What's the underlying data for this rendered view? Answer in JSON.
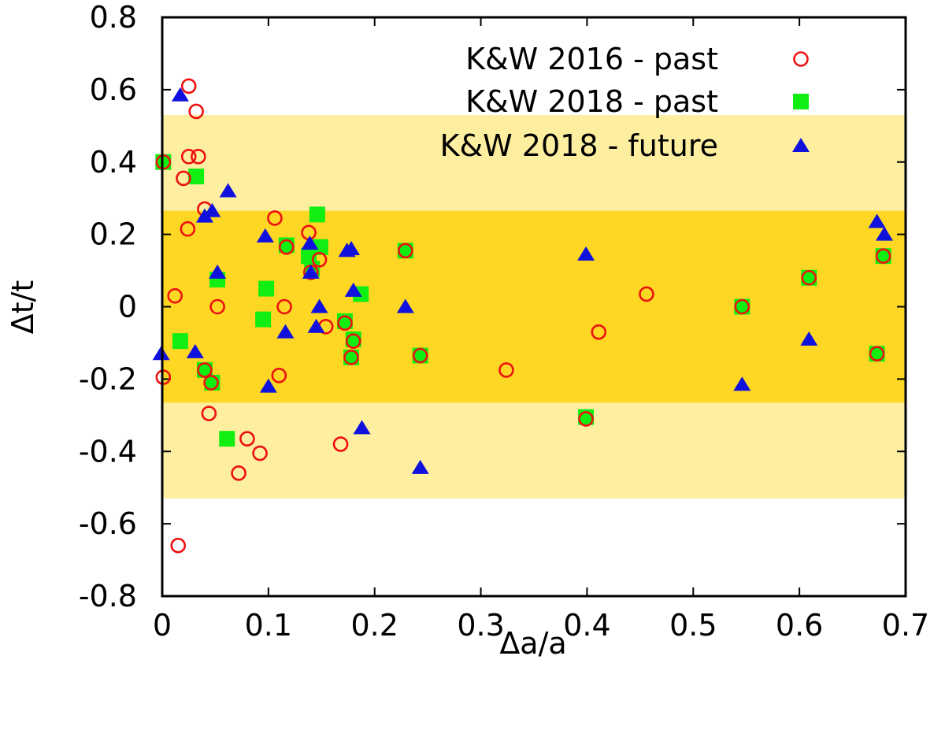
{
  "chart_data": {
    "type": "scatter",
    "title": "",
    "xlabel": "Δa/a",
    "ylabel": "Δt/t",
    "xlim": [
      0,
      0.7
    ],
    "ylim": [
      -0.8,
      0.8
    ],
    "xticks": [
      0,
      0.1,
      0.2,
      0.3,
      0.4,
      0.5,
      0.6,
      0.7
    ],
    "yticks": [
      -0.8,
      -0.6,
      -0.4,
      -0.2,
      0,
      0.2,
      0.4,
      0.6,
      0.8
    ],
    "xtick_labels": [
      "0",
      "0.1",
      "0.2",
      "0.3",
      "0.4",
      "0.5",
      "0.6",
      "0.7"
    ],
    "ytick_labels": [
      "-0.8",
      "-0.6",
      "-0.4",
      "-0.2",
      "0",
      "0.2",
      "0.4",
      "0.6",
      "0.8"
    ],
    "bands": [
      {
        "y0": -0.53,
        "y1": 0.53,
        "color": "#fdeea0"
      },
      {
        "y0": -0.265,
        "y1": 0.265,
        "color": "#fdd723"
      }
    ],
    "legend_position": "top-right",
    "series": [
      {
        "name": "K&W 2016 - past",
        "marker": "open-circle",
        "color": "#ee1111",
        "points": [
          [
            0.001,
            0.4
          ],
          [
            0.015,
            -0.66
          ],
          [
            0.025,
            0.61
          ],
          [
            0.032,
            0.54
          ],
          [
            0.025,
            0.415
          ],
          [
            0.034,
            0.415
          ],
          [
            0.02,
            0.355
          ],
          [
            0.04,
            0.27
          ],
          [
            0.024,
            0.215
          ],
          [
            0.012,
            0.03
          ],
          [
            0.001,
            -0.195
          ],
          [
            0.04,
            -0.175
          ],
          [
            0.046,
            -0.21
          ],
          [
            0.044,
            -0.295
          ],
          [
            0.052,
            0.0
          ],
          [
            0.08,
            -0.365
          ],
          [
            0.092,
            -0.405
          ],
          [
            0.072,
            -0.46
          ],
          [
            0.106,
            0.245
          ],
          [
            0.117,
            0.165
          ],
          [
            0.115,
            0.0
          ],
          [
            0.11,
            -0.19
          ],
          [
            0.138,
            0.205
          ],
          [
            0.14,
            0.095
          ],
          [
            0.148,
            0.13
          ],
          [
            0.154,
            -0.055
          ],
          [
            0.168,
            -0.38
          ],
          [
            0.172,
            -0.045
          ],
          [
            0.178,
            -0.14
          ],
          [
            0.18,
            -0.095
          ],
          [
            0.229,
            0.155
          ],
          [
            0.243,
            -0.135
          ],
          [
            0.324,
            -0.175
          ],
          [
            0.399,
            -0.31
          ],
          [
            0.411,
            -0.07
          ],
          [
            0.456,
            0.035
          ],
          [
            0.546,
            0.0
          ],
          [
            0.609,
            0.08
          ],
          [
            0.673,
            -0.13
          ],
          [
            0.679,
            0.14
          ]
        ]
      },
      {
        "name": "K&W 2018 - past",
        "marker": "filled-square",
        "color": "#11ee11",
        "points": [
          [
            0.001,
            0.4
          ],
          [
            0.032,
            0.36
          ],
          [
            0.017,
            -0.095
          ],
          [
            0.04,
            -0.175
          ],
          [
            0.047,
            -0.21
          ],
          [
            0.052,
            0.075
          ],
          [
            0.061,
            -0.365
          ],
          [
            0.095,
            -0.035
          ],
          [
            0.098,
            0.05
          ],
          [
            0.117,
            0.17
          ],
          [
            0.138,
            0.14
          ],
          [
            0.141,
            0.105
          ],
          [
            0.146,
            0.255
          ],
          [
            0.149,
            0.165
          ],
          [
            0.172,
            -0.04
          ],
          [
            0.178,
            -0.14
          ],
          [
            0.18,
            -0.09
          ],
          [
            0.187,
            0.035
          ],
          [
            0.229,
            0.155
          ],
          [
            0.243,
            -0.135
          ],
          [
            0.399,
            -0.305
          ],
          [
            0.546,
            0.0
          ],
          [
            0.609,
            0.08
          ],
          [
            0.673,
            -0.13
          ],
          [
            0.679,
            0.14
          ]
        ]
      },
      {
        "name": "K&W 2018 - future",
        "marker": "filled-triangle",
        "color": "#1111dd",
        "points": [
          [
            -0.001,
            -0.13
          ],
          [
            0.017,
            0.585
          ],
          [
            0.031,
            -0.125
          ],
          [
            0.04,
            0.25
          ],
          [
            0.047,
            0.265
          ],
          [
            0.052,
            0.095
          ],
          [
            0.062,
            0.32
          ],
          [
            0.097,
            0.195
          ],
          [
            0.1,
            -0.22
          ],
          [
            0.116,
            -0.07
          ],
          [
            0.139,
            0.175
          ],
          [
            0.14,
            0.095
          ],
          [
            0.145,
            -0.055
          ],
          [
            0.148,
            0.0
          ],
          [
            0.174,
            0.155
          ],
          [
            0.178,
            0.16
          ],
          [
            0.18,
            0.045
          ],
          [
            0.188,
            -0.335
          ],
          [
            0.229,
            0.0
          ],
          [
            0.243,
            -0.445
          ],
          [
            0.399,
            0.145
          ],
          [
            0.546,
            -0.215
          ],
          [
            0.609,
            -0.09
          ],
          [
            0.673,
            0.235
          ],
          [
            0.68,
            0.2
          ]
        ]
      }
    ]
  }
}
